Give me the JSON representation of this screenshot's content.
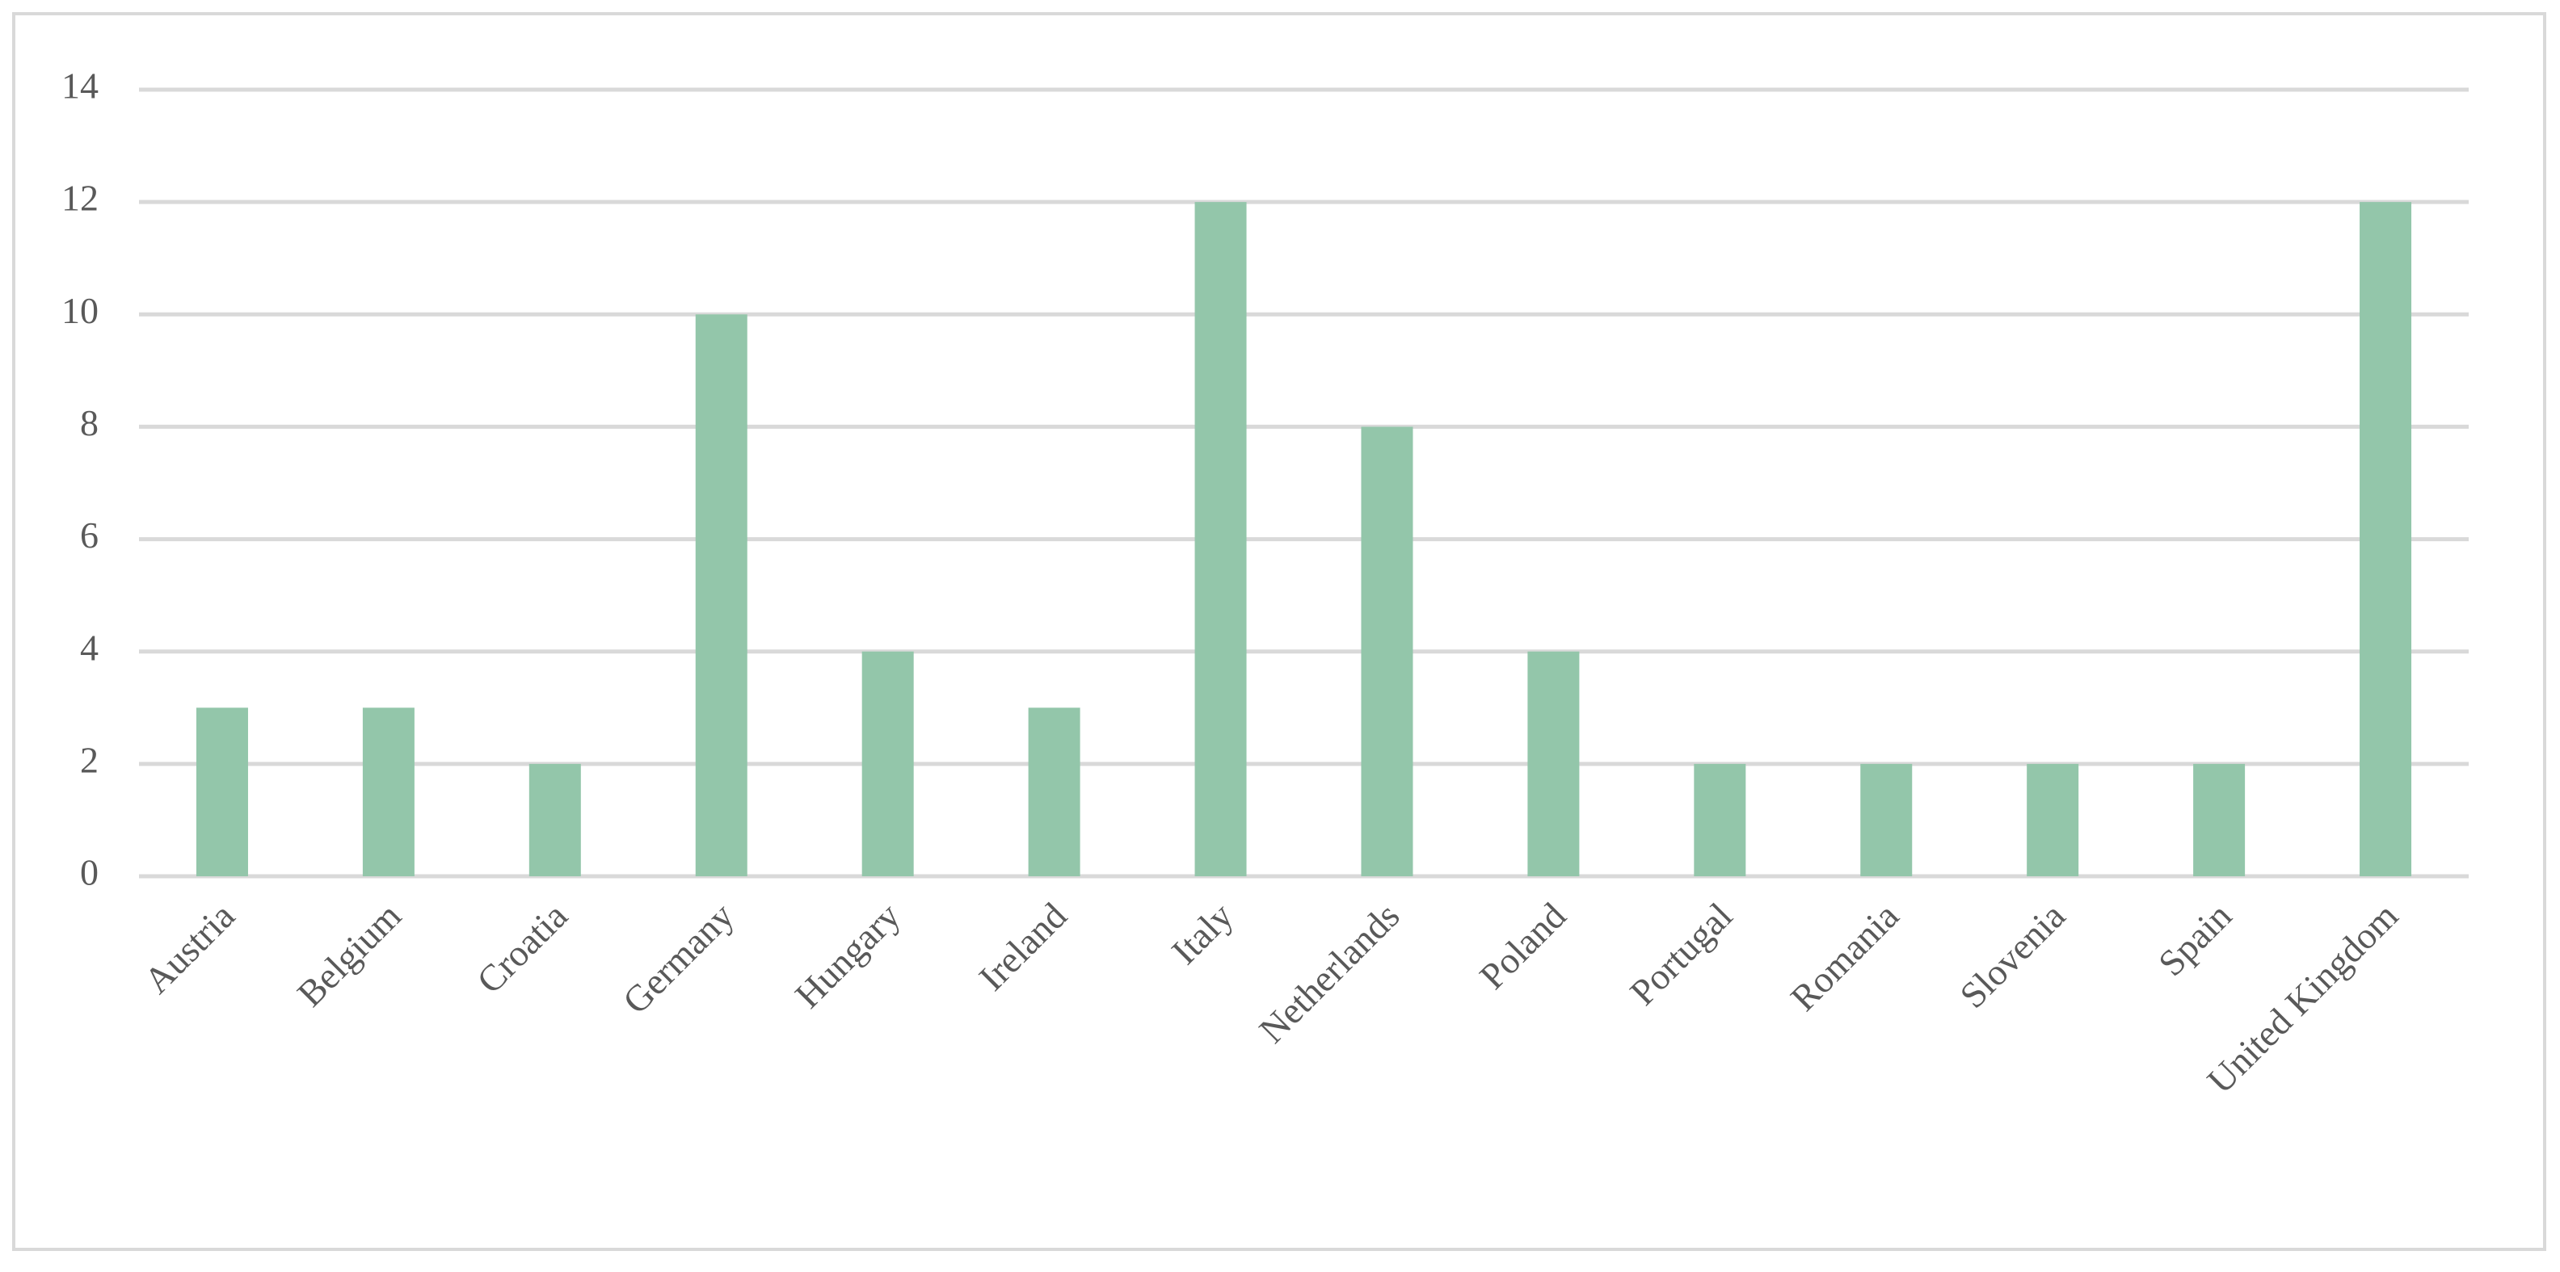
{
  "chart_data": {
    "type": "bar",
    "categories": [
      "Austria",
      "Belgium",
      "Croatia",
      "Germany",
      "Hungary",
      "Ireland",
      "Italy",
      "Netherlands",
      "Poland",
      "Portugal",
      "Romania",
      "Slovenia",
      "Spain",
      "United Kingdom"
    ],
    "values": [
      3,
      3,
      2,
      10,
      4,
      3,
      12,
      8,
      4,
      2,
      2,
      2,
      2,
      12
    ],
    "color": "#93c6aa",
    "ylim": [
      0,
      14
    ],
    "yticks": [
      0,
      2,
      4,
      6,
      8,
      10,
      12,
      14
    ],
    "grid": true
  }
}
